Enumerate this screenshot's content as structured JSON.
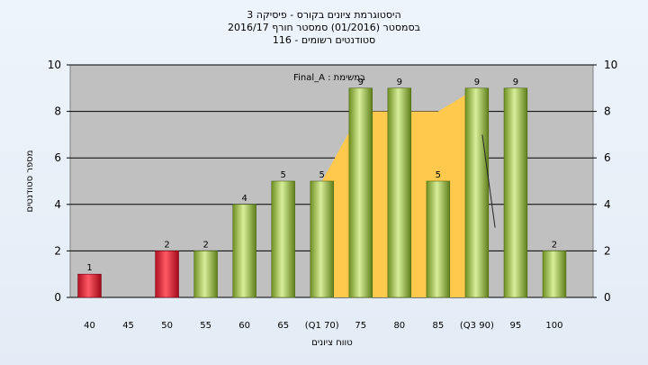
{
  "chart_data": {
    "type": "bar",
    "title_lines": [
      "היסטוגרמת ציונים בקורס - פיסיקה 3",
      "בסמסטר  (01/2016)  סמסטר חורף 2016/17",
      "סטודנטים רשומים - 116"
    ],
    "xlabel": "טווח ציונים",
    "ylabel": "מספר סטודנטים",
    "ylim": [
      0,
      10
    ],
    "yticks": [
      0,
      2,
      4,
      6,
      8,
      10
    ],
    "x_tick_labels": [
      "40",
      "45",
      "50",
      "55",
      "60",
      "65",
      "(Q1 70)",
      "75",
      "80",
      "85",
      "(Q3 90)",
      "95",
      "100"
    ],
    "bars": [
      {
        "x": 40,
        "value": 1,
        "label": "1",
        "color": "red"
      },
      {
        "x": 50,
        "value": 2,
        "label": "2",
        "color": "red"
      },
      {
        "x": 55,
        "value": 2,
        "label": "2",
        "color": "green"
      },
      {
        "x": 60,
        "value": 4,
        "label": "4",
        "color": "green"
      },
      {
        "x": 65,
        "value": 5,
        "label": "5",
        "color": "green"
      },
      {
        "x": 70,
        "value": 5,
        "label": "5",
        "color": "green"
      },
      {
        "x": 75,
        "value": 9,
        "label": "9",
        "color": "green"
      },
      {
        "x": 80,
        "value": 9,
        "label": "9",
        "color": "green"
      },
      {
        "x": 85,
        "value": 5,
        "label": "5",
        "color": "green"
      },
      {
        "x": 90,
        "value": 9,
        "label": "9",
        "color": "green"
      },
      {
        "x": 95,
        "value": 9,
        "label": "9",
        "color": "green"
      },
      {
        "x": 100,
        "value": 2,
        "label": "2",
        "color": "green"
      }
    ],
    "box_area": [
      [
        70,
        5
      ],
      [
        75,
        8
      ],
      [
        80,
        8
      ],
      [
        85,
        8
      ],
      [
        90,
        9
      ],
      [
        90,
        0
      ],
      [
        70,
        0
      ]
    ],
    "median_line": [
      [
        90,
        7
      ],
      [
        92,
        3
      ]
    ],
    "annotation": "במשימת : Final_A",
    "colors": {
      "plot_bg": "#c0c0c0",
      "area": "#ffc94d",
      "grid": "#000000"
    }
  }
}
